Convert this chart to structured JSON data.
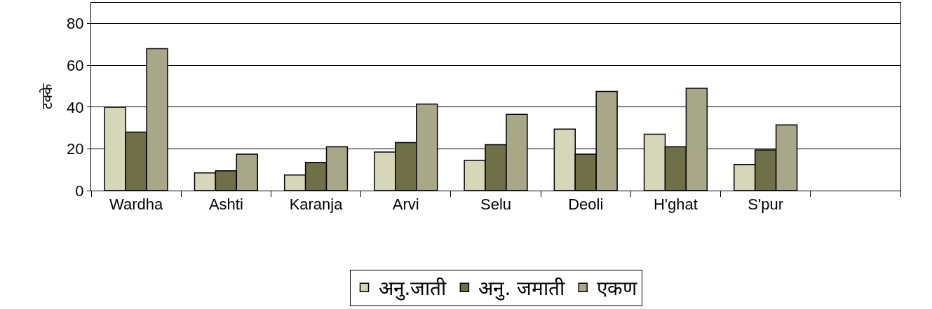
{
  "chart_data": {
    "type": "bar",
    "ylabel": "टक्के",
    "categories": [
      "Wardha",
      "Ashti",
      "Karanja",
      "Arvi",
      "Selu",
      "Deoli",
      "H'ghat",
      "S'pur",
      null
    ],
    "series": [
      {
        "name": "अनु.जाती",
        "color": "#d6d6b8",
        "values": [
          40,
          8.5,
          7.5,
          18.5,
          14.5,
          29.5,
          27,
          12.5,
          null
        ]
      },
      {
        "name": "अनु. जमाती",
        "color": "#707048",
        "values": [
          28,
          9.5,
          13.5,
          23,
          22,
          17.5,
          21,
          19.5,
          null
        ]
      },
      {
        "name": "एकण",
        "color": "#a8a888",
        "values": [
          68,
          17.5,
          21,
          41.5,
          36.5,
          47.5,
          49,
          31.5,
          null
        ]
      }
    ],
    "ylim": [
      0,
      90
    ],
    "yticks": [
      0,
      20,
      40,
      60,
      80
    ],
    "grid": "y",
    "legend": "bottom"
  }
}
